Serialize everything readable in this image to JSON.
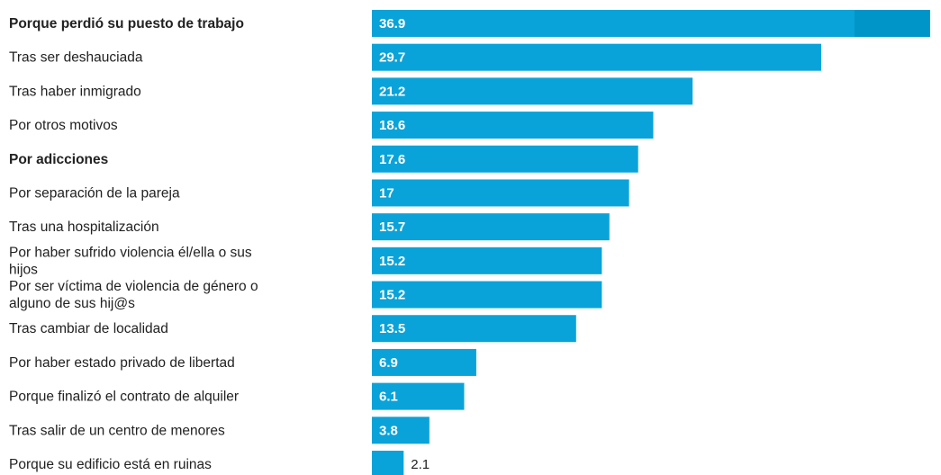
{
  "chart_data": {
    "type": "bar",
    "orientation": "horizontal",
    "title": "",
    "xlabel": "",
    "ylabel": "",
    "xlim": [
      0,
      37.5
    ],
    "grid": false,
    "bar_color": "#0aa3d9",
    "highlight_color": "#0095c9",
    "categories": [
      "Porque perdió su puesto de trabajo",
      "Tras ser deshauciada",
      "Tras haber inmigrado",
      "Por otros motivos",
      "Por adicciones",
      "Por separación de la pareja",
      "Tras una hospitalización",
      "Por haber sufrido violencia él/ella o sus hijos",
      "Por ser víctima de violencia de género o alguno de sus hij@s",
      "Tras cambiar de localidad",
      "Por haber estado privado de libertad",
      "Porque finalizó el contrato de alquiler",
      "Tras salir de un centro de menores",
      "Porque su edificio está en ruinas"
    ],
    "values": [
      36.9,
      29.7,
      21.2,
      18.6,
      17.6,
      17,
      15.7,
      15.2,
      15.2,
      13.5,
      6.9,
      6.1,
      3.8,
      2.1
    ],
    "value_labels": [
      "36.9",
      "29.7",
      "21.2",
      "18.6",
      "17.6",
      "17",
      "15.7",
      "15.2",
      "15.2",
      "13.5",
      "6.9",
      "6.1",
      "3.8",
      "2.1"
    ],
    "bold_categories": [
      "Porque perdió su puesto de trabajo",
      "Por adicciones"
    ]
  }
}
